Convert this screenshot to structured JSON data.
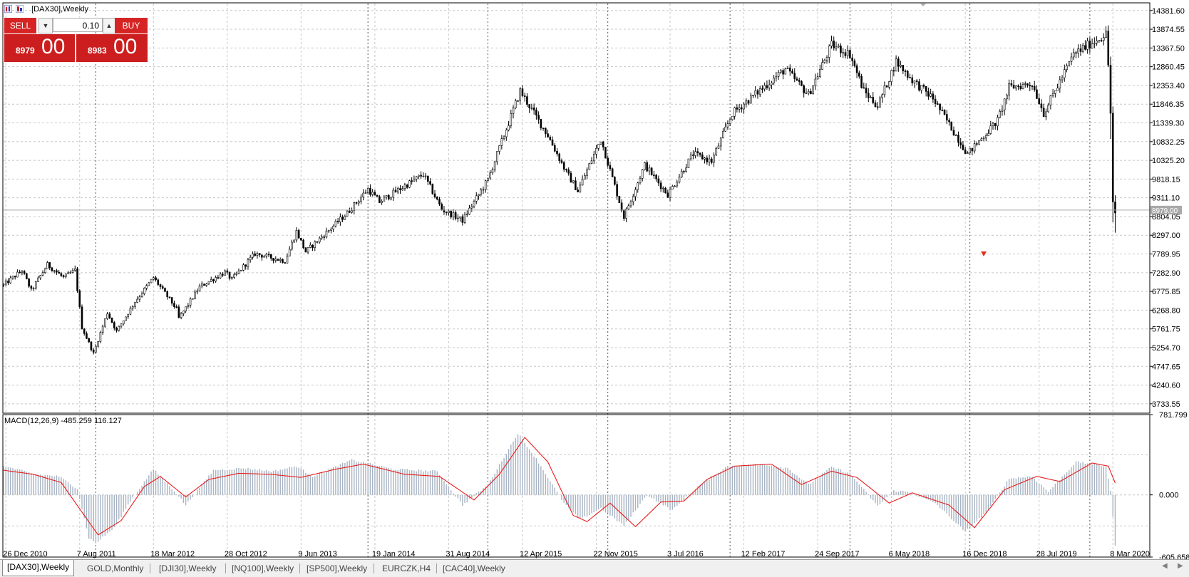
{
  "window": {
    "title": "[DAX30],Weekly"
  },
  "trade_panel": {
    "sell_label": "SELL",
    "buy_label": "BUY",
    "lot": "0.10",
    "bid_small": "8979",
    "bid_big": "00",
    "ask_small": "8983",
    "ask_big": "00"
  },
  "tabs": [
    {
      "label": "[DAX30],Weekly",
      "active": true
    },
    {
      "label": "GOLD,Monthly",
      "active": false
    },
    {
      "label": "[DJI30],Weekly",
      "active": false
    },
    {
      "label": "[NQ100],Weekly",
      "active": false
    },
    {
      "label": "[SP500],Weekly",
      "active": false
    },
    {
      "label": "EURCZK,H4",
      "active": false
    },
    {
      "label": "[CAC40],Weekly",
      "active": false
    }
  ],
  "colors": {
    "grid": "#c8c8c8",
    "candle": "#000000",
    "macd_histogram": "#a7b3c2",
    "macd_signal": "#e81d1d",
    "bid_line": "#a9a9a9",
    "trade_panel": "#cc1e1e"
  },
  "chart_data": [
    {
      "type": "candlestick",
      "symbol": "[DAX30]",
      "timeframe": "Weekly",
      "ylim": [
        3480.0,
        14570.0
      ],
      "price_ticks": [
        "14381.60",
        "13874.55",
        "13367.50",
        "12860.45",
        "12353.40",
        "11846.35",
        "11339.30",
        "10832.25",
        "10325.20",
        "9818.15",
        "9311.10",
        "8804.05",
        "8297.00",
        "7789.95",
        "7282.90",
        "6775.85",
        "6268.80",
        "5761.75",
        "5254.70",
        "4747.65",
        "4240.60",
        "3733.55"
      ],
      "current_price_label": "8979.00",
      "current_price": 8979.0,
      "date_ticks": [
        "26 Dec 2010",
        "7 Aug 2011",
        "18 Mar 2012",
        "28 Oct 2012",
        "9 Jun 2013",
        "19 Jan 2014",
        "31 Aug 2014",
        "12 Apr 2015",
        "22 Nov 2015",
        "3 Jul 2016",
        "12 Feb 2017",
        "24 Sep 2017",
        "6 May 2018",
        "16 Dec 2018",
        "28 Jul 2019",
        "8 Mar 2020"
      ],
      "x_range": [
        "2010-12-19",
        "2020-06-28"
      ],
      "period_separators": [
        "2011-09-25",
        "2013-12-29",
        "2014-12-28",
        "2015-12-27",
        "2017-01-01",
        "2017-12-31",
        "2018-12-30",
        "2019-12-29"
      ],
      "grid": true,
      "series_path": [
        {
          "date": "2010-12-19",
          "close": 6950
        },
        {
          "date": "2011-02-13",
          "close": 7350
        },
        {
          "date": "2011-03-13",
          "close": 6800
        },
        {
          "date": "2011-05-01",
          "close": 7500
        },
        {
          "date": "2011-06-19",
          "close": 7150
        },
        {
          "date": "2011-07-24",
          "close": 7350
        },
        {
          "date": "2011-08-14",
          "close": 5800
        },
        {
          "date": "2011-09-18",
          "close": 5100
        },
        {
          "date": "2011-10-30",
          "close": 6200
        },
        {
          "date": "2011-11-27",
          "close": 5700
        },
        {
          "date": "2012-01-22",
          "close": 6500
        },
        {
          "date": "2012-03-18",
          "close": 7150
        },
        {
          "date": "2012-05-27",
          "close": 6300
        },
        {
          "date": "2012-06-03",
          "close": 6050
        },
        {
          "date": "2012-08-05",
          "close": 6900
        },
        {
          "date": "2012-10-21",
          "close": 7300
        },
        {
          "date": "2012-11-11",
          "close": 7100
        },
        {
          "date": "2013-01-20",
          "close": 7800
        },
        {
          "date": "2013-04-21",
          "close": 7600
        },
        {
          "date": "2013-05-26",
          "close": 8400
        },
        {
          "date": "2013-06-23",
          "close": 7850
        },
        {
          "date": "2013-10-27",
          "close": 8900
        },
        {
          "date": "2013-12-29",
          "close": 9550
        },
        {
          "date": "2014-02-02",
          "close": 9200
        },
        {
          "date": "2014-06-15",
          "close": 9950
        },
        {
          "date": "2014-08-10",
          "close": 9000
        },
        {
          "date": "2014-10-12",
          "close": 8700
        },
        {
          "date": "2014-12-28",
          "close": 9800
        },
        {
          "date": "2015-04-05",
          "close": 12200
        },
        {
          "date": "2015-06-28",
          "close": 11000
        },
        {
          "date": "2015-08-23",
          "close": 10000
        },
        {
          "date": "2015-09-27",
          "close": 9500
        },
        {
          "date": "2015-12-06",
          "close": 10900
        },
        {
          "date": "2016-02-07",
          "close": 9000
        },
        {
          "date": "2016-02-14",
          "close": 8800
        },
        {
          "date": "2016-04-17",
          "close": 10200
        },
        {
          "date": "2016-06-26",
          "close": 9400
        },
        {
          "date": "2016-09-11",
          "close": 10500
        },
        {
          "date": "2016-11-06",
          "close": 10300
        },
        {
          "date": "2017-01-08",
          "close": 11600
        },
        {
          "date": "2017-06-18",
          "close": 12800
        },
        {
          "date": "2017-08-27",
          "close": 12100
        },
        {
          "date": "2017-11-05",
          "close": 13450
        },
        {
          "date": "2017-12-31",
          "close": 13200
        },
        {
          "date": "2018-02-11",
          "close": 12200
        },
        {
          "date": "2018-03-25",
          "close": 11800
        },
        {
          "date": "2018-05-20",
          "close": 13000
        },
        {
          "date": "2018-07-08",
          "close": 12500
        },
        {
          "date": "2018-09-09",
          "close": 12000
        },
        {
          "date": "2018-12-23",
          "close": 10500
        },
        {
          "date": "2019-03-24",
          "close": 11400
        },
        {
          "date": "2019-04-28",
          "close": 12300
        },
        {
          "date": "2019-07-07",
          "close": 12400
        },
        {
          "date": "2019-08-11",
          "close": 11600
        },
        {
          "date": "2019-11-10",
          "close": 13200
        },
        {
          "date": "2020-02-16",
          "close": 13750
        },
        {
          "date": "2020-02-23",
          "close": 12900
        },
        {
          "date": "2020-03-01",
          "close": 11600
        },
        {
          "date": "2020-03-08",
          "close": 9200
        },
        {
          "date": "2020-03-15",
          "close": 8900
        }
      ],
      "down_arrow_marker": {
        "date": "2019-02-10",
        "price": 7780
      }
    },
    {
      "type": "macd",
      "label": "MACD(12,26,9) -485.259 116.127",
      "ylim": [
        -605.658,
        781.799
      ],
      "y_ticks": [
        "781.799",
        "0.000",
        "-605.658"
      ],
      "histogram_path": [
        {
          "date": "2010-12-19",
          "value": 280
        },
        {
          "date": "2011-03-27",
          "value": 200
        },
        {
          "date": "2011-06-05",
          "value": 180
        },
        {
          "date": "2011-07-31",
          "value": 60
        },
        {
          "date": "2011-09-04",
          "value": -420
        },
        {
          "date": "2011-09-25",
          "value": -470
        },
        {
          "date": "2011-11-20",
          "value": -320
        },
        {
          "date": "2012-01-08",
          "value": -60
        },
        {
          "date": "2012-03-18",
          "value": 250
        },
        {
          "date": "2012-05-20",
          "value": 40
        },
        {
          "date": "2012-06-24",
          "value": -100
        },
        {
          "date": "2012-09-16",
          "value": 240
        },
        {
          "date": "2012-12-16",
          "value": 260
        },
        {
          "date": "2013-03-17",
          "value": 230
        },
        {
          "date": "2013-05-26",
          "value": 280
        },
        {
          "date": "2013-07-14",
          "value": 180
        },
        {
          "date": "2013-11-10",
          "value": 340
        },
        {
          "date": "2014-03-16",
          "value": 250
        },
        {
          "date": "2014-07-27",
          "value": 230
        },
        {
          "date": "2014-10-12",
          "value": -100
        },
        {
          "date": "2014-12-28",
          "value": 100
        },
        {
          "date": "2015-03-29",
          "value": 600
        },
        {
          "date": "2015-05-24",
          "value": 350
        },
        {
          "date": "2015-08-16",
          "value": -80
        },
        {
          "date": "2015-10-04",
          "value": -240
        },
        {
          "date": "2015-12-06",
          "value": -130
        },
        {
          "date": "2016-02-14",
          "value": -300
        },
        {
          "date": "2016-04-24",
          "value": 0
        },
        {
          "date": "2016-07-10",
          "value": -150
        },
        {
          "date": "2016-09-25",
          "value": 80
        },
        {
          "date": "2016-12-25",
          "value": 280
        },
        {
          "date": "2017-04-09",
          "value": 300
        },
        {
          "date": "2017-06-25",
          "value": 260
        },
        {
          "date": "2017-08-27",
          "value": 100
        },
        {
          "date": "2017-11-05",
          "value": 270
        },
        {
          "date": "2017-12-31",
          "value": 210
        },
        {
          "date": "2018-03-25",
          "value": -110
        },
        {
          "date": "2018-05-13",
          "value": 40
        },
        {
          "date": "2018-06-24",
          "value": 30
        },
        {
          "date": "2018-09-16",
          "value": -80
        },
        {
          "date": "2018-12-16",
          "value": -360
        },
        {
          "date": "2019-02-24",
          "value": -150
        },
        {
          "date": "2019-04-28",
          "value": 160
        },
        {
          "date": "2019-07-07",
          "value": 180
        },
        {
          "date": "2019-08-25",
          "value": 30
        },
        {
          "date": "2019-11-17",
          "value": 320
        },
        {
          "date": "2020-02-16",
          "value": 280
        },
        {
          "date": "2020-03-01",
          "value": 40
        },
        {
          "date": "2020-03-15",
          "value": -485
        }
      ],
      "signal_path": [
        {
          "date": "2010-12-19",
          "value": 240
        },
        {
          "date": "2011-03-20",
          "value": 200
        },
        {
          "date": "2011-06-12",
          "value": 120
        },
        {
          "date": "2011-08-21",
          "value": -200
        },
        {
          "date": "2011-10-02",
          "value": -390
        },
        {
          "date": "2011-12-11",
          "value": -250
        },
        {
          "date": "2012-02-19",
          "value": 80
        },
        {
          "date": "2012-04-08",
          "value": 180
        },
        {
          "date": "2012-06-24",
          "value": -20
        },
        {
          "date": "2012-09-02",
          "value": 150
        },
        {
          "date": "2012-12-02",
          "value": 210
        },
        {
          "date": "2013-03-10",
          "value": 200
        },
        {
          "date": "2013-06-09",
          "value": 170
        },
        {
          "date": "2013-09-22",
          "value": 250
        },
        {
          "date": "2013-12-15",
          "value": 300
        },
        {
          "date": "2014-04-20",
          "value": 200
        },
        {
          "date": "2014-08-03",
          "value": 180
        },
        {
          "date": "2014-11-16",
          "value": -50
        },
        {
          "date": "2015-02-01",
          "value": 200
        },
        {
          "date": "2015-04-19",
          "value": 560
        },
        {
          "date": "2015-06-28",
          "value": 320
        },
        {
          "date": "2015-09-13",
          "value": -200
        },
        {
          "date": "2015-10-25",
          "value": -260
        },
        {
          "date": "2016-01-03",
          "value": -80
        },
        {
          "date": "2016-03-20",
          "value": -310
        },
        {
          "date": "2016-06-05",
          "value": -70
        },
        {
          "date": "2016-08-14",
          "value": -60
        },
        {
          "date": "2016-10-23",
          "value": 150
        },
        {
          "date": "2017-01-15",
          "value": 280
        },
        {
          "date": "2017-05-07",
          "value": 300
        },
        {
          "date": "2017-08-06",
          "value": 100
        },
        {
          "date": "2017-11-05",
          "value": 230
        },
        {
          "date": "2018-01-21",
          "value": 170
        },
        {
          "date": "2018-04-29",
          "value": -80
        },
        {
          "date": "2018-07-08",
          "value": 20
        },
        {
          "date": "2018-10-28",
          "value": -100
        },
        {
          "date": "2019-01-13",
          "value": -320
        },
        {
          "date": "2019-04-14",
          "value": 50
        },
        {
          "date": "2019-07-21",
          "value": 180
        },
        {
          "date": "2019-09-29",
          "value": 130
        },
        {
          "date": "2020-01-05",
          "value": 310
        },
        {
          "date": "2020-02-23",
          "value": 280
        },
        {
          "date": "2020-03-15",
          "value": 116
        }
      ]
    }
  ]
}
